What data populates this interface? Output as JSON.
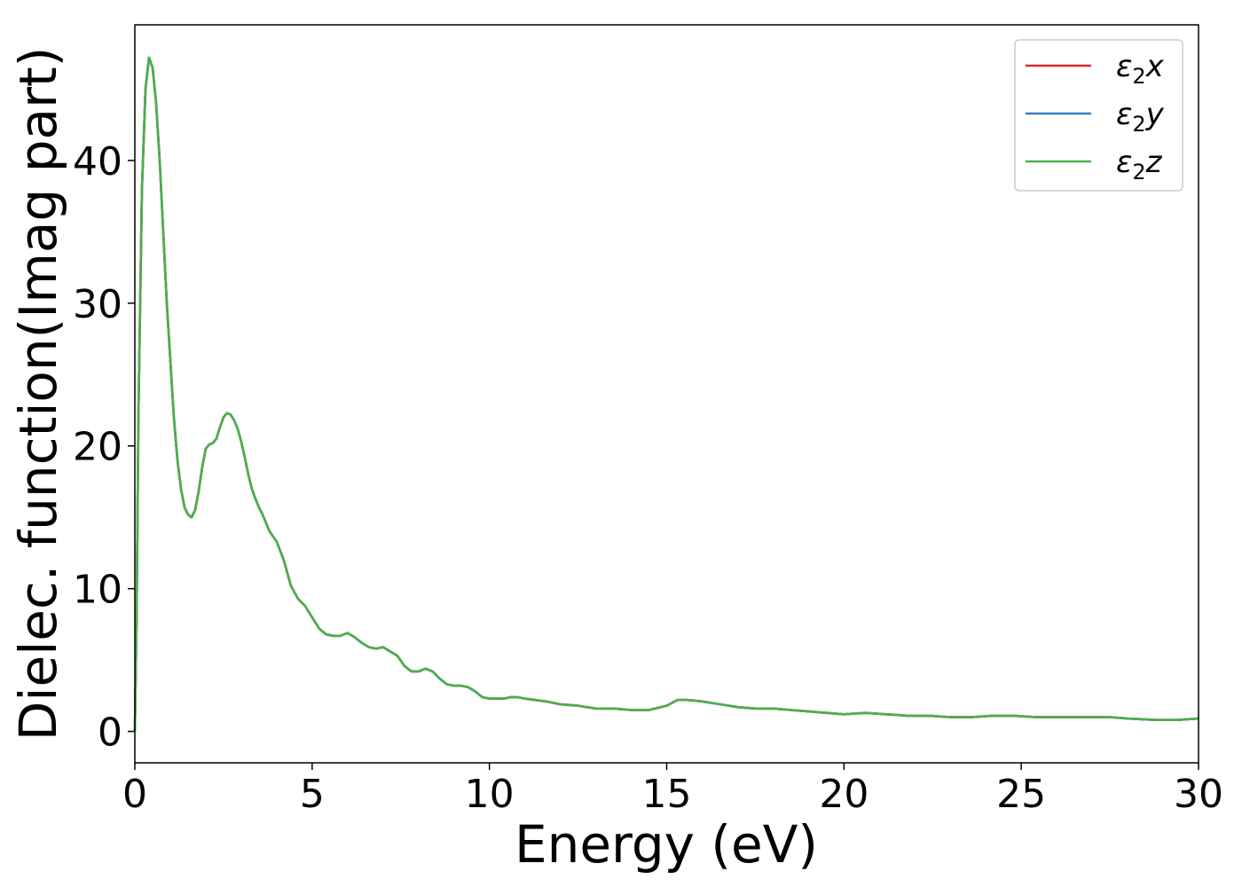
{
  "chart_data": {
    "type": "line",
    "title": "",
    "xlabel": "Energy (eV)",
    "ylabel": "Dielec. function(Imag part)",
    "xlim": [
      0,
      30
    ],
    "ylim": [
      -2.2,
      49.5
    ],
    "xticks": [
      0,
      5,
      10,
      15,
      20,
      25,
      30
    ],
    "yticks": [
      0,
      10,
      20,
      30,
      40
    ],
    "grid": false,
    "legend_position": "top-right",
    "x": [
      0,
      0.05,
      0.1,
      0.2,
      0.3,
      0.4,
      0.5,
      0.6,
      0.7,
      0.8,
      0.9,
      1.0,
      1.1,
      1.2,
      1.3,
      1.4,
      1.5,
      1.6,
      1.7,
      1.8,
      1.9,
      2.0,
      2.1,
      2.2,
      2.3,
      2.4,
      2.5,
      2.6,
      2.7,
      2.8,
      2.9,
      3.0,
      3.1,
      3.2,
      3.3,
      3.4,
      3.5,
      3.6,
      3.8,
      4.0,
      4.2,
      4.4,
      4.6,
      4.8,
      5.0,
      5.2,
      5.4,
      5.6,
      5.8,
      6.0,
      6.2,
      6.4,
      6.6,
      6.8,
      7.0,
      7.2,
      7.4,
      7.6,
      7.8,
      8.0,
      8.2,
      8.4,
      8.6,
      8.8,
      9.0,
      9.2,
      9.4,
      9.6,
      9.8,
      10.0,
      10.2,
      10.4,
      10.6,
      10.8,
      11.0,
      11.3,
      11.6,
      12.0,
      12.5,
      13.0,
      13.5,
      14.0,
      14.5,
      15.0,
      15.3,
      15.6,
      16.0,
      16.5,
      17.0,
      17.5,
      18.0,
      18.5,
      19.0,
      19.5,
      20.0,
      20.6,
      21.2,
      21.8,
      22.4,
      23.0,
      23.6,
      24.2,
      24.8,
      25.4,
      26.0,
      26.8,
      27.5,
      28.0,
      28.8,
      29.4,
      30.0
    ],
    "series": [
      {
        "name": "ε2x",
        "color": "#d62728",
        "y": [
          0,
          8,
          22,
          38,
          45,
          47.2,
          46.5,
          44,
          40,
          35,
          30,
          26,
          22,
          19,
          17,
          15.7,
          15.2,
          15,
          15.5,
          16.8,
          18.5,
          19.8,
          20.1,
          20.2,
          20.5,
          21.3,
          22,
          22.3,
          22.2,
          21.8,
          21.2,
          20.3,
          19.2,
          18,
          17,
          16.3,
          15.7,
          15.2,
          14,
          13.3,
          12,
          10.2,
          9.3,
          8.8,
          8,
          7.2,
          6.8,
          6.7,
          6.7,
          6.9,
          6.6,
          6.2,
          5.9,
          5.8,
          5.9,
          5.6,
          5.3,
          4.6,
          4.2,
          4.2,
          4.4,
          4.2,
          3.7,
          3.3,
          3.2,
          3.2,
          3.1,
          2.8,
          2.4,
          2.3,
          2.3,
          2.3,
          2.4,
          2.4,
          2.3,
          2.2,
          2.1,
          1.9,
          1.8,
          1.6,
          1.6,
          1.5,
          1.5,
          1.8,
          2.2,
          2.2,
          2.1,
          1.9,
          1.7,
          1.6,
          1.6,
          1.5,
          1.4,
          1.3,
          1.2,
          1.3,
          1.2,
          1.1,
          1.1,
          1.0,
          1.0,
          1.1,
          1.1,
          1.0,
          1.0,
          1.0,
          1.0,
          0.9,
          0.8,
          0.8,
          0.9
        ]
      },
      {
        "name": "ε2y",
        "color": "#377eb8",
        "y": [
          0,
          8,
          22,
          38,
          45,
          47.2,
          46.5,
          44,
          40,
          35,
          30,
          26,
          22,
          19,
          17,
          15.7,
          15.2,
          15,
          15.5,
          16.8,
          18.5,
          19.8,
          20.1,
          20.2,
          20.5,
          21.3,
          22,
          22.3,
          22.2,
          21.8,
          21.2,
          20.3,
          19.2,
          18,
          17,
          16.3,
          15.7,
          15.2,
          14,
          13.3,
          12,
          10.2,
          9.3,
          8.8,
          8,
          7.2,
          6.8,
          6.7,
          6.7,
          6.9,
          6.6,
          6.2,
          5.9,
          5.8,
          5.9,
          5.6,
          5.3,
          4.6,
          4.2,
          4.2,
          4.4,
          4.2,
          3.7,
          3.3,
          3.2,
          3.2,
          3.1,
          2.8,
          2.4,
          2.3,
          2.3,
          2.3,
          2.4,
          2.4,
          2.3,
          2.2,
          2.1,
          1.9,
          1.8,
          1.6,
          1.6,
          1.5,
          1.5,
          1.8,
          2.2,
          2.2,
          2.1,
          1.9,
          1.7,
          1.6,
          1.6,
          1.5,
          1.4,
          1.3,
          1.2,
          1.3,
          1.2,
          1.1,
          1.1,
          1.0,
          1.0,
          1.1,
          1.1,
          1.0,
          1.0,
          1.0,
          1.0,
          0.9,
          0.8,
          0.8,
          0.9
        ]
      },
      {
        "name": "ε2z",
        "color": "#4daf4a",
        "y": [
          0,
          8,
          22,
          38,
          45,
          47.2,
          46.5,
          44,
          40,
          35,
          30,
          26,
          22,
          19,
          17,
          15.7,
          15.2,
          15,
          15.5,
          16.8,
          18.5,
          19.8,
          20.1,
          20.2,
          20.5,
          21.3,
          22,
          22.3,
          22.2,
          21.8,
          21.2,
          20.3,
          19.2,
          18,
          17,
          16.3,
          15.7,
          15.2,
          14,
          13.3,
          12,
          10.2,
          9.3,
          8.8,
          8,
          7.2,
          6.8,
          6.7,
          6.7,
          6.9,
          6.6,
          6.2,
          5.9,
          5.8,
          5.9,
          5.6,
          5.3,
          4.6,
          4.2,
          4.2,
          4.4,
          4.2,
          3.7,
          3.3,
          3.2,
          3.2,
          3.1,
          2.8,
          2.4,
          2.3,
          2.3,
          2.3,
          2.4,
          2.4,
          2.3,
          2.2,
          2.1,
          1.9,
          1.8,
          1.6,
          1.6,
          1.5,
          1.5,
          1.8,
          2.2,
          2.2,
          2.1,
          1.9,
          1.7,
          1.6,
          1.6,
          1.5,
          1.4,
          1.3,
          1.2,
          1.3,
          1.2,
          1.1,
          1.1,
          1.0,
          1.0,
          1.1,
          1.1,
          1.0,
          1.0,
          1.0,
          1.0,
          0.9,
          0.8,
          0.8,
          0.9
        ]
      }
    ],
    "legend": [
      {
        "base": "ε",
        "sub": "2",
        "var": "x"
      },
      {
        "base": "ε",
        "sub": "2",
        "var": "y"
      },
      {
        "base": "ε",
        "sub": "2",
        "var": "z"
      }
    ]
  }
}
